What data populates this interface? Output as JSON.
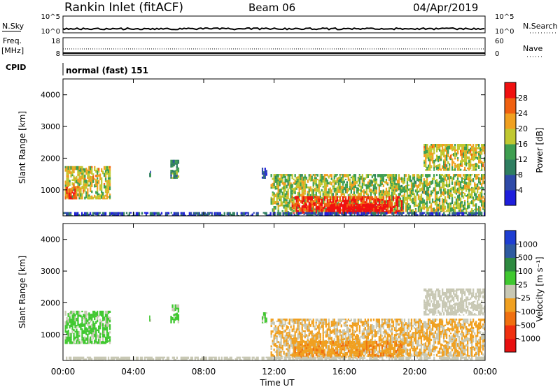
{
  "header": {
    "station": "Rankin Inlet (fitACF)",
    "beam": "Beam 06",
    "date": "04/Apr/2019"
  },
  "top_panels": {
    "nsky": {
      "label": "N.Sky",
      "ticks": [
        "10^5",
        "10^0"
      ]
    },
    "nsearch": {
      "label": "N.Search",
      "ticks": [
        "10^5",
        "10^0"
      ]
    },
    "freq": {
      "label_line1": "Freq.",
      "label_line2": "[MHz]",
      "ticks": [
        "18",
        "8"
      ]
    },
    "nave": {
      "label": "Nave",
      "ticks": [
        "60",
        "0"
      ]
    },
    "cpid": {
      "label": "CPID",
      "text": "normal (fast) 151"
    }
  },
  "colors": {
    "power_scale": [
      "#1e1edc",
      "#2e4aa8",
      "#2e7e60",
      "#3e9e50",
      "#c0c830",
      "#f0a020",
      "#f06010",
      "#f01010"
    ],
    "velocity_scale": [
      "#e81010",
      "#f03010",
      "#f07010",
      "#f0a020",
      "#c8c8b4",
      "#40c830",
      "#2e8a40",
      "#2e5aa0",
      "#1e3ed2"
    ],
    "background": "#ffffff"
  },
  "chart_data": [
    {
      "type": "heatmap",
      "title": "Power",
      "ylabel": "Slant Range [km]",
      "xlabel": "",
      "x_ticks": [
        "00:00",
        "04:00",
        "08:00",
        "12:00",
        "16:00",
        "20:00",
        "00:00"
      ],
      "y_ticks": [
        "1000",
        "2000",
        "3000",
        "4000"
      ],
      "xlim_hours": [
        0,
        24
      ],
      "ylim_km": [
        180,
        4500
      ],
      "colorbar": {
        "label": "Power [dB]",
        "ticks": [
          "4",
          "8",
          "12",
          "16",
          "20",
          "24",
          "28"
        ],
        "range": [
          0,
          30
        ]
      },
      "regions": [
        {
          "t0": 0.1,
          "t1": 2.7,
          "r0": 700,
          "r1": 1750,
          "level": "mid-high",
          "value": 18
        },
        {
          "t0": 0.1,
          "t1": 0.8,
          "r0": 700,
          "r1": 1100,
          "level": "high",
          "value": 25
        },
        {
          "t0": 4.9,
          "t1": 5.0,
          "r0": 1400,
          "r1": 1600,
          "level": "low",
          "value": 9
        },
        {
          "t0": 6.1,
          "t1": 6.6,
          "r0": 1350,
          "r1": 1950,
          "level": "mid",
          "value": 12
        },
        {
          "t0": 11.3,
          "t1": 11.6,
          "r0": 1350,
          "r1": 1700,
          "level": "low",
          "value": 8
        },
        {
          "t0": 11.8,
          "t1": 24.0,
          "r0": 300,
          "r1": 1500,
          "level": "mid",
          "value": 16
        },
        {
          "t0": 13.0,
          "t1": 19.3,
          "r0": 250,
          "r1": 800,
          "level": "high",
          "value": 27
        },
        {
          "t0": 15.0,
          "t1": 18.5,
          "r0": 250,
          "r1": 550,
          "level": "very-high",
          "value": 30
        },
        {
          "t0": 20.5,
          "t1": 24.0,
          "r0": 1600,
          "r1": 2450,
          "level": "mid-high",
          "value": 18
        },
        {
          "t0": 0.0,
          "t1": 24.0,
          "r0": 180,
          "r1": 300,
          "level": "low",
          "value": 6
        }
      ]
    },
    {
      "type": "heatmap",
      "title": "Velocity",
      "ylabel": "Slant Range [km]",
      "xlabel": "Time UT",
      "x_ticks": [
        "00:00",
        "04:00",
        "08:00",
        "12:00",
        "16:00",
        "20:00",
        "00:00"
      ],
      "y_ticks": [
        "1000",
        "2000",
        "3000",
        "4000"
      ],
      "xlim_hours": [
        0,
        24
      ],
      "ylim_km": [
        180,
        4500
      ],
      "colorbar": {
        "label": "Velocity [m s⁻¹]",
        "ticks": [
          "1000",
          "500",
          "100",
          "25",
          "-25",
          "-100",
          "-500",
          "-1000"
        ],
        "range": [
          -1200,
          1200
        ]
      },
      "regions": [
        {
          "t0": 0.1,
          "t1": 2.7,
          "r0": 700,
          "r1": 1750,
          "level": "positive",
          "value": 200
        },
        {
          "t0": 4.9,
          "t1": 5.0,
          "r0": 1400,
          "r1": 1600,
          "level": "positive",
          "value": 150
        },
        {
          "t0": 6.1,
          "t1": 6.6,
          "r0": 1350,
          "r1": 1950,
          "level": "positive",
          "value": 200
        },
        {
          "t0": 11.3,
          "t1": 11.6,
          "r0": 1350,
          "r1": 1700,
          "level": "positive",
          "value": 150
        },
        {
          "t0": 11.8,
          "t1": 24.0,
          "r0": 300,
          "r1": 1500,
          "level": "negative",
          "value": -150
        },
        {
          "t0": 13.0,
          "t1": 19.3,
          "r0": 250,
          "r1": 800,
          "level": "negative",
          "value": -300
        },
        {
          "t0": 20.5,
          "t1": 24.0,
          "r0": 1600,
          "r1": 2450,
          "level": "near-zero",
          "value": 0
        },
        {
          "t0": 0.0,
          "t1": 24.0,
          "r0": 180,
          "r1": 300,
          "level": "near-zero",
          "value": 0
        }
      ]
    }
  ]
}
